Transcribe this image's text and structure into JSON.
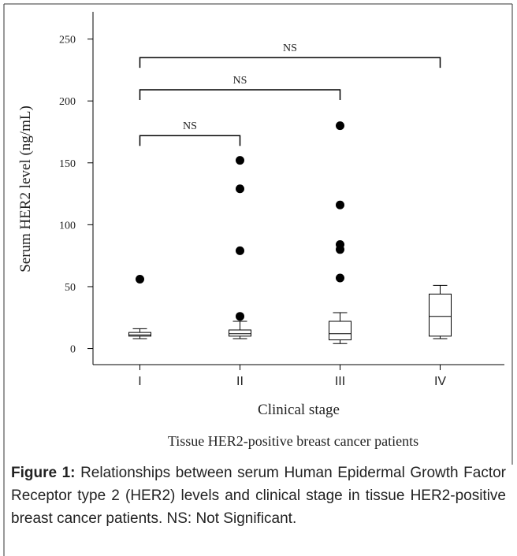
{
  "chart_data": {
    "type": "box",
    "title": "Tissue HER2-positive breast cancer patients",
    "x_label": "Clinical stage",
    "y_label": "Serum HER2 level (ng/mL)",
    "categories": [
      "I",
      "II",
      "III",
      "IV"
    ],
    "boxes": [
      {
        "low": 8,
        "q1": 10,
        "median": 11,
        "q3": 13,
        "high": 16,
        "outliers": [
          56
        ]
      },
      {
        "low": 8,
        "q1": 10,
        "median": 12,
        "q3": 15,
        "high": 22,
        "outliers": [
          26,
          79,
          129,
          152
        ]
      },
      {
        "low": 4,
        "q1": 7,
        "median": 12,
        "q3": 22,
        "high": 29,
        "outliers": [
          57,
          80,
          84,
          116,
          180
        ]
      },
      {
        "low": 8,
        "q1": 10,
        "median": 26,
        "q3": 44,
        "high": 51,
        "outliers": []
      }
    ],
    "brackets": [
      {
        "label": "NS",
        "y": 172,
        "span": [
          0,
          1
        ]
      },
      {
        "label": "NS",
        "y": 209,
        "span": [
          0,
          2
        ]
      },
      {
        "label": "NS",
        "y": 235,
        "span": [
          0,
          3
        ]
      }
    ],
    "ylim": [
      -13,
      272
    ],
    "yticks": [
      0,
      50,
      100,
      150,
      200,
      250
    ],
    "color": "#000000"
  },
  "caption": {
    "label": "Figure 1:",
    "text": "Relationships between serum Human Epidermal Growth Factor Receptor type 2 (HER2) levels and clinical stage in tissue HER2-positive breast cancer patients. NS: Not Significant."
  }
}
